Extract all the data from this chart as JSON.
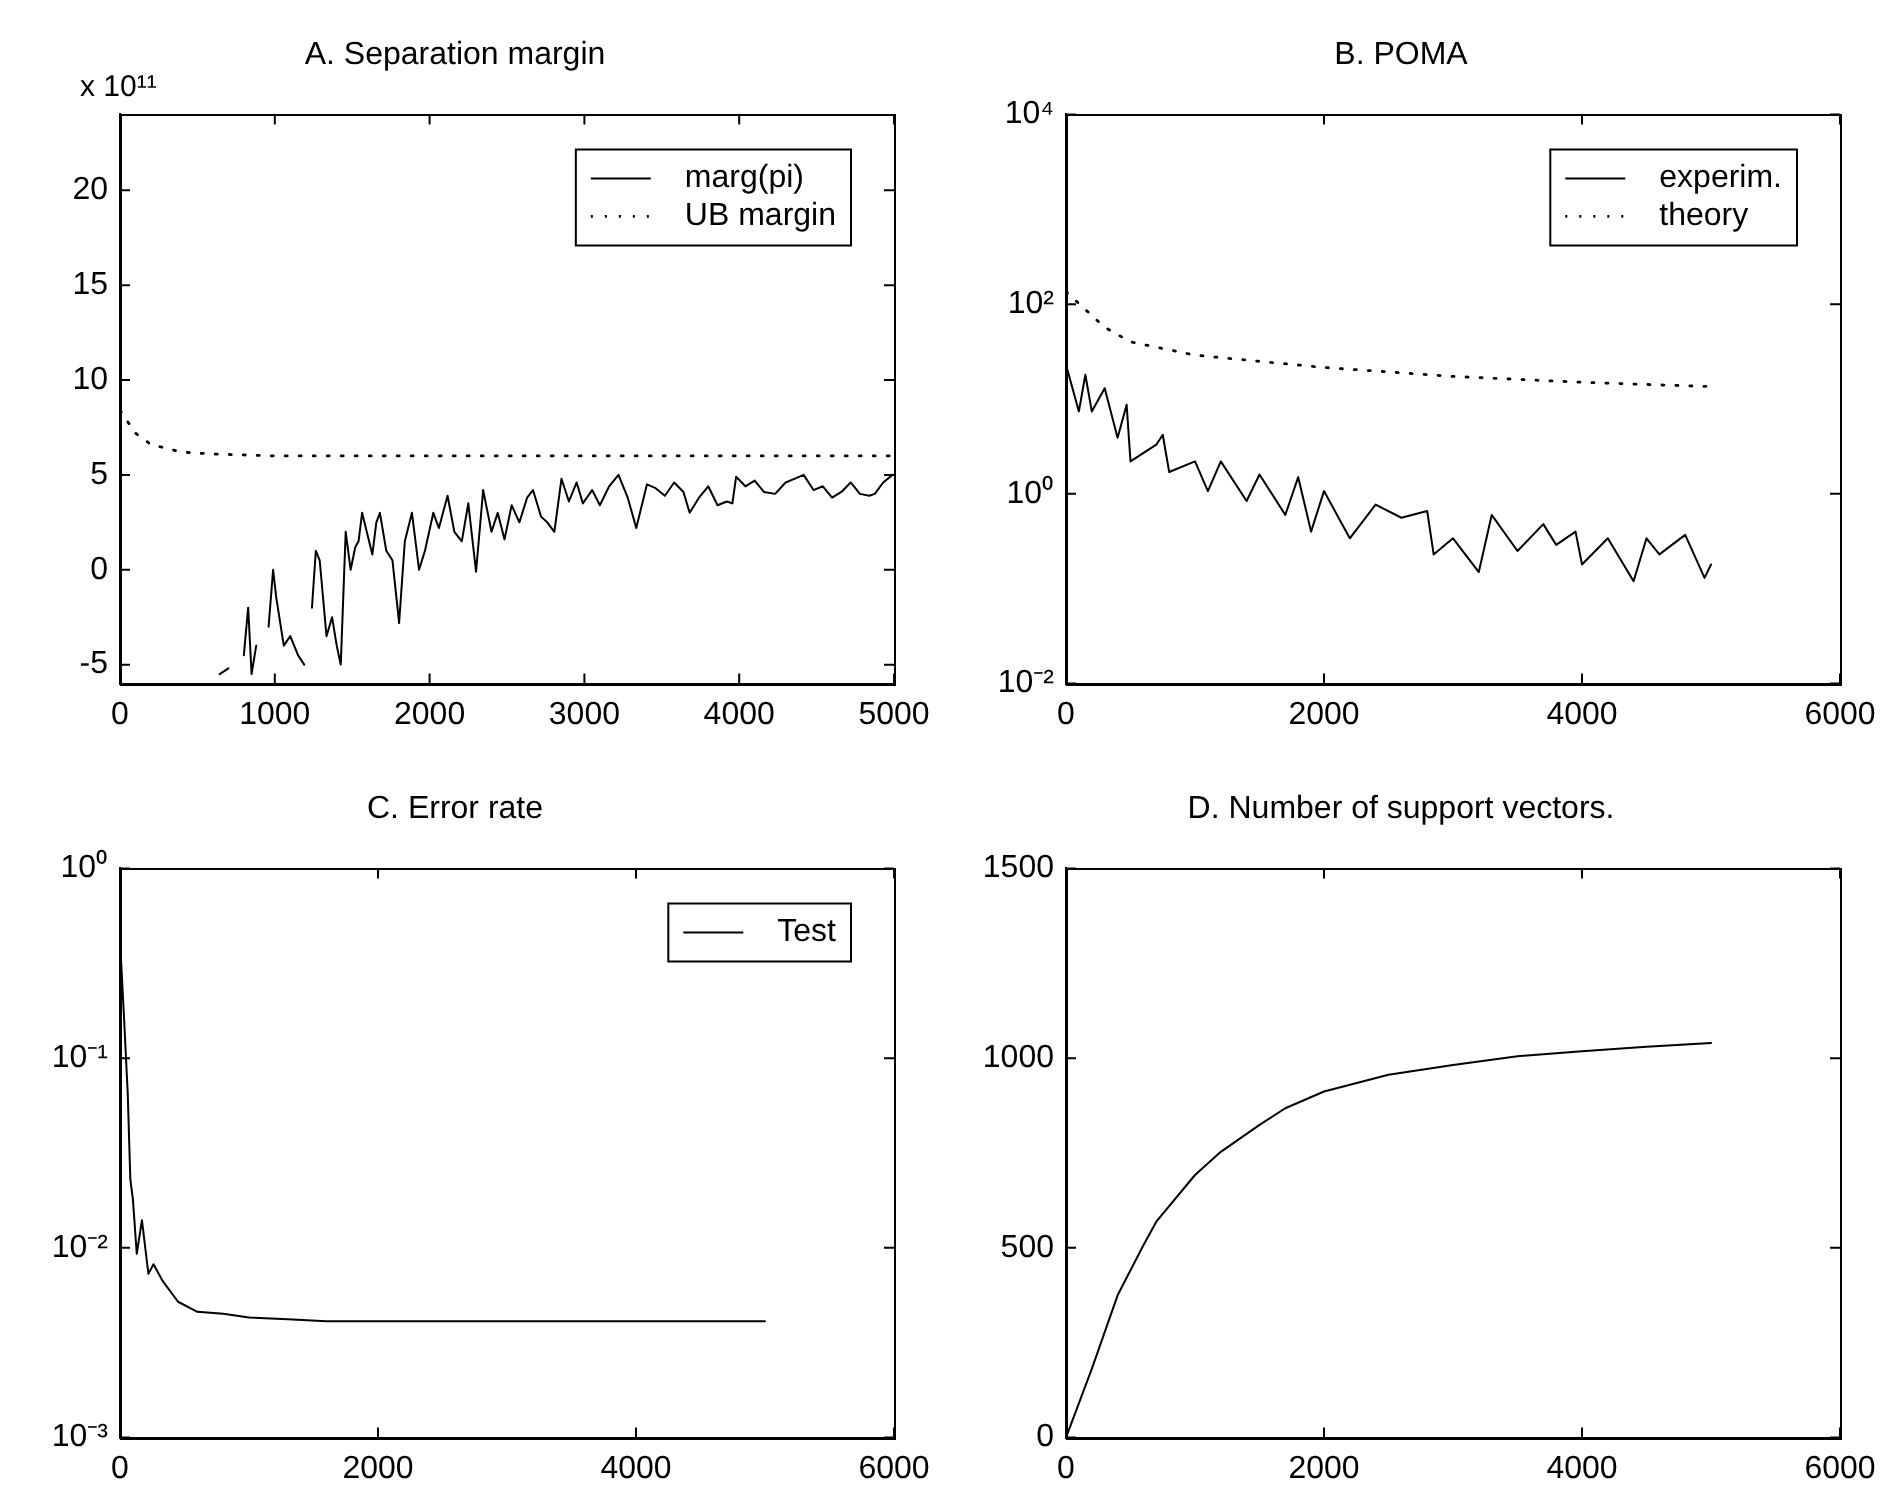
{
  "chart_data": [
    {
      "type": "line",
      "title": "A. Separation margin",
      "annotations": [
        "x 10¹¹"
      ],
      "xlim": [
        0,
        5000
      ],
      "xticks": [
        0,
        1000,
        2000,
        3000,
        4000,
        5000
      ],
      "ylim": [
        -6,
        24
      ],
      "yticks": [
        -5,
        0,
        5,
        10,
        15,
        20
      ],
      "grid": false,
      "legend": "top right",
      "marker": "none",
      "series": [
        {
          "name": "marg(pi)",
          "color": "#000000",
          "line_style": "solid",
          "x": [
            644,
            700,
            760,
            782,
            800,
            828,
            850,
            880,
            920,
            960,
            989,
            1010,
            1058,
            1100,
            1150,
            1190,
            1219,
            1240,
            1265,
            1290,
            1334,
            1370,
            1400,
            1426,
            1458,
            1490,
            1520,
            1541,
            1564,
            1600,
            1630,
            1656,
            1679,
            1720,
            1760,
            1803,
            1840,
            1886,
            1932,
            1970,
            2024,
            2060,
            2116,
            2160,
            2208,
            2250,
            2300,
            2346,
            2400,
            2440,
            2484,
            2530,
            2580,
            2630,
            2668,
            2720,
            2760,
            2806,
            2852,
            2900,
            2950,
            2990,
            3050,
            3100,
            3160,
            3220,
            3280,
            3335,
            3404,
            3460,
            3520,
            3580,
            3640,
            3680,
            3740,
            3800,
            3860,
            3920,
            3956,
            3980,
            4040,
            4100,
            4160,
            4232,
            4300,
            4360,
            4416,
            4480,
            4540,
            4600,
            4660,
            4720,
            4780,
            4840,
            4876,
            4930,
            4991
          ],
          "values": [
            -5.5,
            -5.2,
            null,
            null,
            -4.5,
            -2,
            -5.5,
            -4,
            null,
            -3,
            0,
            -1.5,
            -4,
            -3.5,
            -4.5,
            -5,
            null,
            -2,
            1,
            0.5,
            -3.5,
            -2.5,
            -4,
            -5,
            2,
            0,
            1.2,
            1.5,
            3,
            1.8,
            0.8,
            2.5,
            3,
            1,
            0.5,
            -2.8,
            1.5,
            3,
            0,
            1,
            3,
            2.2,
            3.9,
            2,
            1.5,
            3.5,
            -0.1,
            4.2,
            2,
            3,
            1.6,
            3.4,
            2.5,
            3.8,
            4.2,
            2.8,
            2.5,
            2,
            4.8,
            3.6,
            4.6,
            3.5,
            4.2,
            3.4,
            4.4,
            5,
            3.8,
            2.2,
            4.5,
            4.3,
            3.9,
            4.6,
            4.1,
            3,
            3.8,
            4.4,
            3.4,
            3.6,
            3.5,
            4.9,
            4.4,
            4.7,
            4.1,
            4.0,
            4.6,
            4.8,
            5.0,
            4.2,
            4.4,
            3.8,
            4.1,
            4.6,
            4.0,
            3.9,
            4.0,
            4.6,
            5.0
          ]
        },
        {
          "name": "UB margin",
          "color": "#000000",
          "line_style": "dotted",
          "x": [
            0,
            100,
            200,
            400,
            600,
            1000,
            2000,
            3000,
            4000,
            5000
          ],
          "values": [
            8.4,
            7.2,
            6.6,
            6.2,
            6.1,
            6.0,
            6.0,
            6.0,
            6.0,
            6.0
          ]
        }
      ]
    },
    {
      "type": "line",
      "title": "B. POMA",
      "log": "y",
      "xlim": [
        0,
        6000
      ],
      "xticks": [
        0,
        2000,
        4000,
        6000
      ],
      "ylim": [
        0.01,
        10000
      ],
      "yticks": [
        {
          "value": 0.01,
          "label": "10⁻²"
        },
        {
          "value": 1,
          "label": "10⁰"
        },
        {
          "value": 100,
          "label": "10²"
        },
        {
          "value": 10000,
          "label": "10⁴"
        }
      ],
      "grid": false,
      "legend": "top right",
      "marker": "none",
      "series": [
        {
          "name": "experim.",
          "color": "#000000",
          "line_style": "solid",
          "x": [
            0,
            100,
            150,
            200,
            300,
            400,
            470,
            500,
            700,
            750,
            800,
            1000,
            1100,
            1200,
            1400,
            1500,
            1700,
            1800,
            1900,
            2000,
            2200,
            2400,
            2600,
            2800,
            2850,
            3000,
            3200,
            3300,
            3500,
            3700,
            3800,
            3950,
            4000,
            4200,
            4400,
            4500,
            4600,
            4800,
            4950,
            5000
          ],
          "values": [
            23,
            7.4,
            18,
            7.4,
            13,
            3.9,
            8.7,
            2.2,
            3.3,
            4.2,
            1.7,
            2.2,
            1.07,
            2.2,
            0.84,
            1.6,
            0.6,
            1.5,
            0.4,
            1.07,
            0.34,
            0.77,
            0.56,
            0.66,
            0.23,
            0.34,
            0.15,
            0.6,
            0.25,
            0.48,
            0.29,
            0.4,
            0.18,
            0.34,
            0.12,
            0.34,
            0.23,
            0.37,
            0.13,
            0.18
          ]
        },
        {
          "name": "theory",
          "color": "#000000",
          "line_style": "dotted",
          "x": [
            0,
            300,
            500,
            1000,
            2000,
            3000,
            4000,
            5000
          ],
          "values": [
            135,
            57,
            40,
            29,
            21.5,
            17.3,
            15,
            13.5
          ]
        }
      ]
    },
    {
      "type": "line",
      "title": "C. Error rate",
      "log": "y",
      "xlim": [
        0,
        6000
      ],
      "xticks": [
        0,
        2000,
        4000,
        6000
      ],
      "ylim": [
        0.001,
        1
      ],
      "yticks": [
        {
          "value": 0.001,
          "label": "10⁻³"
        },
        {
          "value": 0.01,
          "label": "10⁻²"
        },
        {
          "value": 0.1,
          "label": "10⁻¹"
        },
        {
          "value": 1,
          "label": "10⁰"
        }
      ],
      "grid": false,
      "legend": "top right",
      "marker": "none",
      "series": [
        {
          "name": "Test",
          "color": "#000000",
          "line_style": "solid",
          "x": [
            0,
            30,
            60,
            80,
            100,
            130,
            170,
            220,
            260,
            330,
            450,
            600,
            800,
            1000,
            1300,
            1600,
            5000
          ],
          "values": [
            0.42,
            0.17,
            0.065,
            0.023,
            0.018,
            0.0093,
            0.014,
            0.0073,
            0.0082,
            0.0067,
            0.0052,
            0.0046,
            0.0045,
            0.0043,
            0.0042,
            0.0041,
            0.0041
          ]
        }
      ]
    },
    {
      "type": "line",
      "title": "D. Number of support vectors.",
      "xlim": [
        0,
        6000
      ],
      "xticks": [
        0,
        2000,
        4000,
        6000
      ],
      "ylim": [
        0,
        1500
      ],
      "yticks": [
        0,
        500,
        1000,
        1500
      ],
      "grid": false,
      "marker": "none",
      "series": [
        {
          "color": "#000000",
          "line_style": "solid",
          "x": [
            0,
            200,
            400,
            600,
            700,
            1000,
            1200,
            1500,
            1700,
            2000,
            2500,
            3000,
            3500,
            4000,
            4500,
            5000
          ],
          "values": [
            0,
            181,
            375,
            507,
            569,
            692,
            753,
            824,
            868,
            912,
            956,
            982,
            1005,
            1018,
            1030,
            1040
          ]
        }
      ]
    }
  ]
}
